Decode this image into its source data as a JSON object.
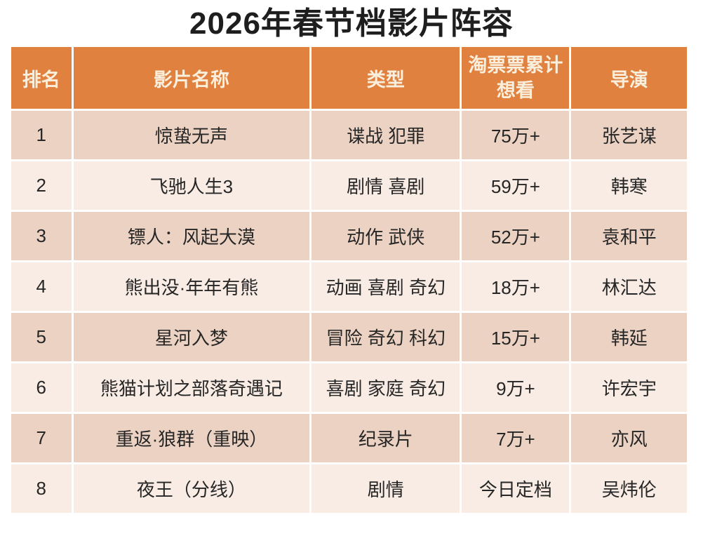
{
  "title": "2026年春节档影片阵容",
  "colors": {
    "header_bg": "#E08140",
    "header_text": "#F9EFDC",
    "row_odd": "#ECD2C2",
    "row_even": "#F8ECE4",
    "title_text": "#1E1E1E",
    "body_text": "#262626"
  },
  "table": {
    "columns": [
      "排名",
      "影片名称",
      "类型",
      "淘票票累计\n想看",
      "导演"
    ],
    "rows": [
      {
        "rank": "1",
        "name": "惊蛰无声",
        "genre": "谍战 犯罪",
        "want": "75万+",
        "director": "张艺谋"
      },
      {
        "rank": "2",
        "name": "飞驰人生3",
        "genre": "剧情 喜剧",
        "want": "59万+",
        "director": "韩寒"
      },
      {
        "rank": "3",
        "name": "镖人：风起大漠",
        "genre": "动作 武侠",
        "want": "52万+",
        "director": "袁和平"
      },
      {
        "rank": "4",
        "name": "熊出没·年年有熊",
        "genre": "动画 喜剧 奇幻",
        "want": "18万+",
        "director": "林汇达"
      },
      {
        "rank": "5",
        "name": "星河入梦",
        "genre": "冒险 奇幻 科幻",
        "want": "15万+",
        "director": "韩延"
      },
      {
        "rank": "6",
        "name": "熊猫计划之部落奇遇记",
        "genre": "喜剧 家庭 奇幻",
        "want": "9万+",
        "director": "许宏宇"
      },
      {
        "rank": "7",
        "name": "重返·狼群（重映）",
        "genre": "纪录片",
        "want": "7万+",
        "director": "亦风"
      },
      {
        "rank": "8",
        "name": "夜王（分线）",
        "genre": "剧情",
        "want": "今日定档",
        "director": "吴炜伦"
      }
    ]
  }
}
